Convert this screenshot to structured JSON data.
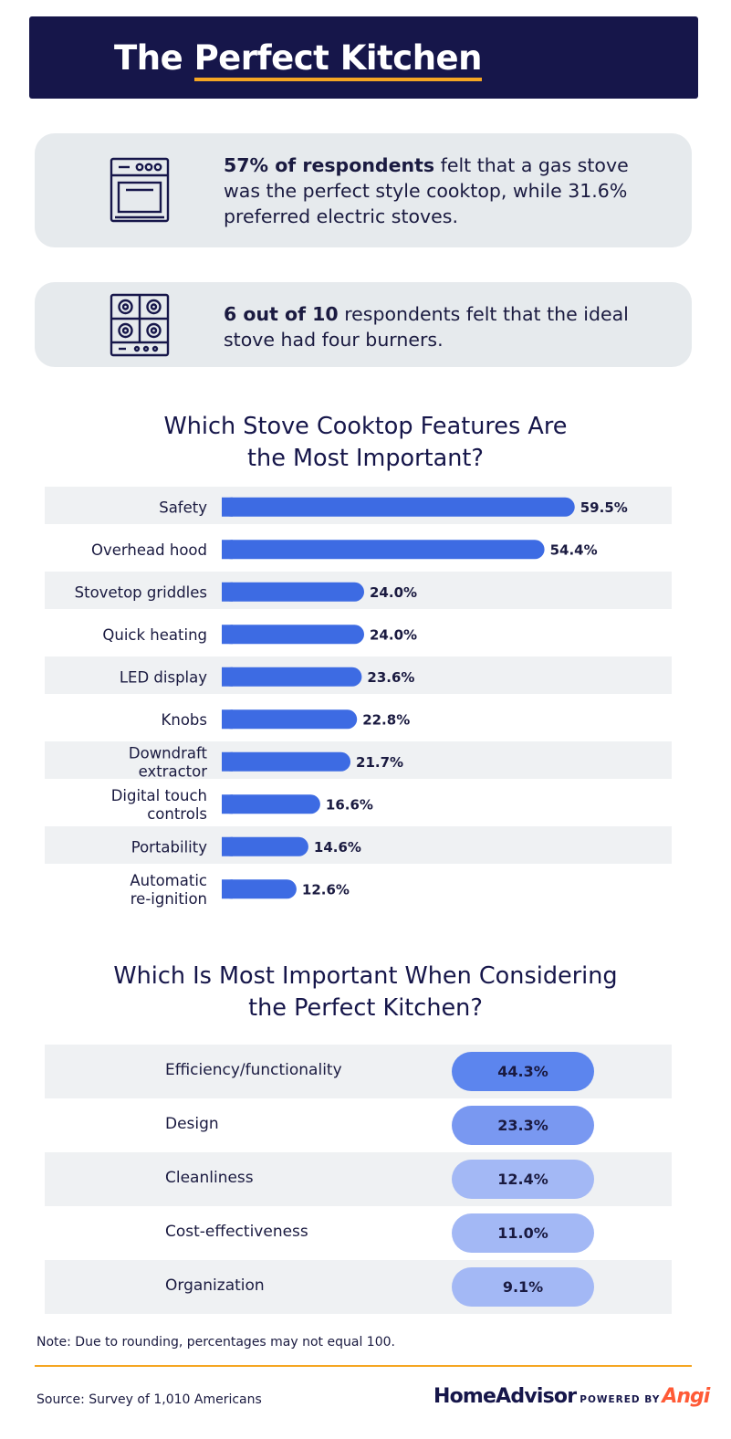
{
  "header": {
    "title_prefix": "The ",
    "title_highlight": "Perfect Kitchen"
  },
  "facts": [
    {
      "icon": "oven-icon",
      "bold": "57% of respondents",
      "text": " felt that a gas stove was the perfect style cooktop, while 31.6% preferred electric stoves."
    },
    {
      "icon": "cooktop-burners-icon",
      "bold": "6 out of 10",
      "text": " respondents felt that the ideal stove had four burners."
    }
  ],
  "chart_data": [
    {
      "type": "bar",
      "orientation": "horizontal",
      "title_lines": [
        "Which Stove Cooktop Features Are",
        "the Most Important?"
      ],
      "categories": [
        "Safety",
        "Overhead hood",
        "Stovetop griddles",
        "Quick heating",
        "LED display",
        "Knobs",
        "Downdraft extractor",
        "Digital touch controls",
        "Portability",
        "Automatic re-ignition"
      ],
      "category_lines": [
        [
          "Safety"
        ],
        [
          "Overhead hood"
        ],
        [
          "Stovetop griddles"
        ],
        [
          "Quick heating"
        ],
        [
          "LED display"
        ],
        [
          "Knobs"
        ],
        [
          "Downdraft",
          "extractor"
        ],
        [
          "Digital touch",
          "controls"
        ],
        [
          "Portability"
        ],
        [
          "Automatic",
          "re-ignition"
        ]
      ],
      "values": [
        59.5,
        54.4,
        24.0,
        24.0,
        23.6,
        22.8,
        21.7,
        16.6,
        14.6,
        12.6
      ],
      "value_labels": [
        "59.5%",
        "54.4%",
        "24.0%",
        "24.0%",
        "23.6%",
        "22.8%",
        "21.7%",
        "16.6%",
        "14.6%",
        "12.6%"
      ],
      "unit": "%",
      "bar_color": "#3d6be3",
      "stripe_color": "#eff1f3",
      "grid": false,
      "legend": "none"
    },
    {
      "type": "table",
      "title_lines": [
        "Which Is Most Important When Considering",
        "the Perfect Kitchen?"
      ],
      "categories": [
        "Efficiency/functionality",
        "Design",
        "Cleanliness",
        "Cost-effectiveness",
        "Organization"
      ],
      "values": [
        44.3,
        23.3,
        12.4,
        11.0,
        9.1
      ],
      "value_labels": [
        "44.3%",
        "23.3%",
        "12.4%",
        "11.0%",
        "9.1%"
      ],
      "unit": "%",
      "pill_colors": [
        "#5c85ee",
        "#7998f1",
        "#a3b8f5",
        "#a3b8f5",
        "#a3b8f5"
      ]
    }
  ],
  "footer": {
    "note": "Note: Due to rounding, percentages may not equal 100.",
    "source": "Source: Survey of 1,010 Americans",
    "brand": "HomeAdvisor",
    "powered_by": "POWERED BY",
    "angi": "Angi"
  },
  "colors": {
    "navy": "#16164a",
    "accent": "#f5a623",
    "card": "#e6eaed",
    "angi": "#ff5a36"
  }
}
